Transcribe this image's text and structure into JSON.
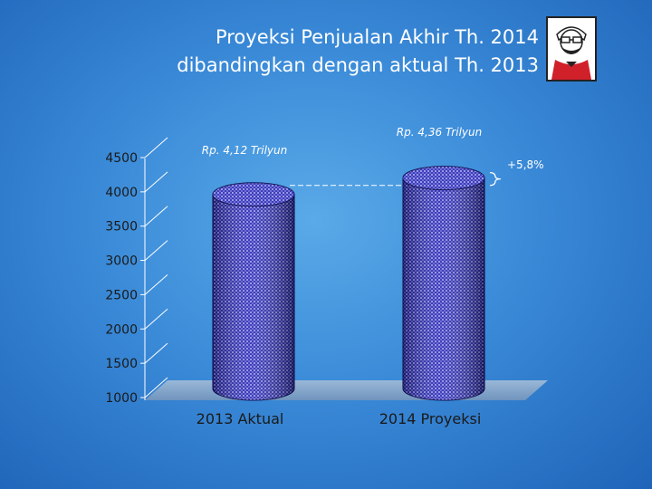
{
  "title_lines": [
    "Proyeksi Penjualan Akhir Th. 2014",
    "dibandingkan dengan aktual Th. 2013"
  ],
  "logo": {
    "icon": "kfc-colonel-logo",
    "text": "KFC"
  },
  "chart_data": {
    "type": "bar",
    "categories": [
      "2013 Aktual",
      "2014 Proyeksi"
    ],
    "values": [
      4120,
      4360
    ],
    "data_labels": [
      "Rp. 4,12 Trilyun",
      "Rp. 4,36 Trilyun"
    ],
    "ylim": [
      1000,
      4500
    ],
    "yticks": [
      1000,
      1500,
      2000,
      2500,
      3000,
      3500,
      4000,
      4500
    ],
    "grid": false,
    "annotation": "+5,8%",
    "bar_color": "#2a2ab8"
  }
}
